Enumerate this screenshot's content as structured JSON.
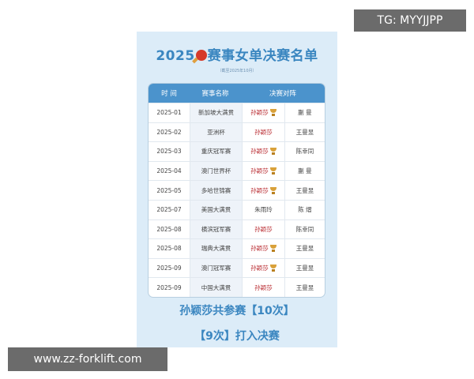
{
  "title_year": "2025",
  "title_text": "赛事女单决赛名单",
  "subtitle": "（截至2025年10月）",
  "headers": {
    "time": "时 间",
    "event": "赛事名称",
    "final": "决赛对阵"
  },
  "rows": [
    {
      "time": "2025-01",
      "event": "新加坡大满贯",
      "player": "孙颖莎",
      "opponent": "蒯 曼",
      "champion": true
    },
    {
      "time": "2025-02",
      "event": "亚洲杯",
      "player": "孙颖莎",
      "opponent": "王曼昱",
      "champion": false
    },
    {
      "time": "2025-03",
      "event": "重庆冠军赛",
      "player": "孙颖莎",
      "opponent": "陈幸同",
      "champion": true
    },
    {
      "time": "2025-04",
      "event": "澳门世界杯",
      "player": "孙颖莎",
      "opponent": "蒯 曼",
      "champion": true
    },
    {
      "time": "2025-05",
      "event": "多哈世锦赛",
      "player": "孙颖莎",
      "opponent": "王曼昱",
      "champion": true
    },
    {
      "time": "2025-07",
      "event": "美国大满贯",
      "player": "朱雨玲",
      "opponent": "陈 熠",
      "champion": false
    },
    {
      "time": "2025-08",
      "event": "横滨冠军赛",
      "player": "孙颖莎",
      "opponent": "陈幸同",
      "champion": false
    },
    {
      "time": "2025-08",
      "event": "瑞典大满贯",
      "player": "孙颖莎",
      "opponent": "王曼昱",
      "champion": true
    },
    {
      "time": "2025-09",
      "event": "澳门冠军赛",
      "player": "孙颖莎",
      "opponent": "王曼昱",
      "champion": true
    },
    {
      "time": "2025-09",
      "event": "中国大满贯",
      "player": "孙颖莎",
      "opponent": "王曼昱",
      "champion": false
    }
  ],
  "footer_line1": "孙颖莎共参赛【10次】",
  "footer_line2": "【9次】打入决赛",
  "watermark_top": "TG: MYYJJPP",
  "watermark_bottom": "www.zz-forklift.com",
  "colors": {
    "accent": "#3a86c0",
    "header_bg": "#4b93cc",
    "winner_text": "#b8282e",
    "card_bg": "#dcecf8"
  }
}
